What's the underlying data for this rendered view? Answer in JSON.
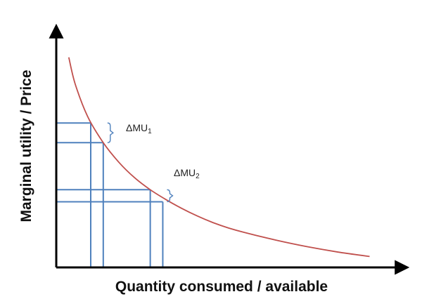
{
  "chart_data": {
    "type": "line",
    "xlabel": "Quantity consumed / available",
    "ylabel": "Marginal utility / Price",
    "series": [
      {
        "x": [
          0.4,
          0.6,
          1.0,
          1.5,
          2.0,
          2.5,
          3.0,
          3.5,
          4.0,
          4.5,
          5.0,
          5.5,
          6.0,
          7.0,
          8.0,
          9.0,
          10.0
        ],
        "values": [
          9.6,
          8.4,
          6.9,
          5.7,
          4.8,
          4.1,
          3.55,
          3.1,
          2.7,
          2.35,
          2.05,
          1.8,
          1.6,
          1.25,
          0.95,
          0.7,
          0.5
        ]
      }
    ],
    "annotations": [
      {
        "label": "ΔMU",
        "subscript": "1",
        "q_from": 1.1,
        "q_to": 1.5,
        "mu_from": 6.6,
        "mu_to": 5.7
      },
      {
        "label": "ΔMU",
        "subscript": "2",
        "q_from": 3.0,
        "q_to": 3.4,
        "mu_from": 3.55,
        "mu_to": 3.0
      }
    ],
    "xlim": [
      0,
      11
    ],
    "ylim": [
      0,
      11
    ],
    "grid": false,
    "ticks": false,
    "colors": {
      "curve": "#c0504d",
      "guides": "#4f81bd",
      "axes": "#000000"
    }
  }
}
